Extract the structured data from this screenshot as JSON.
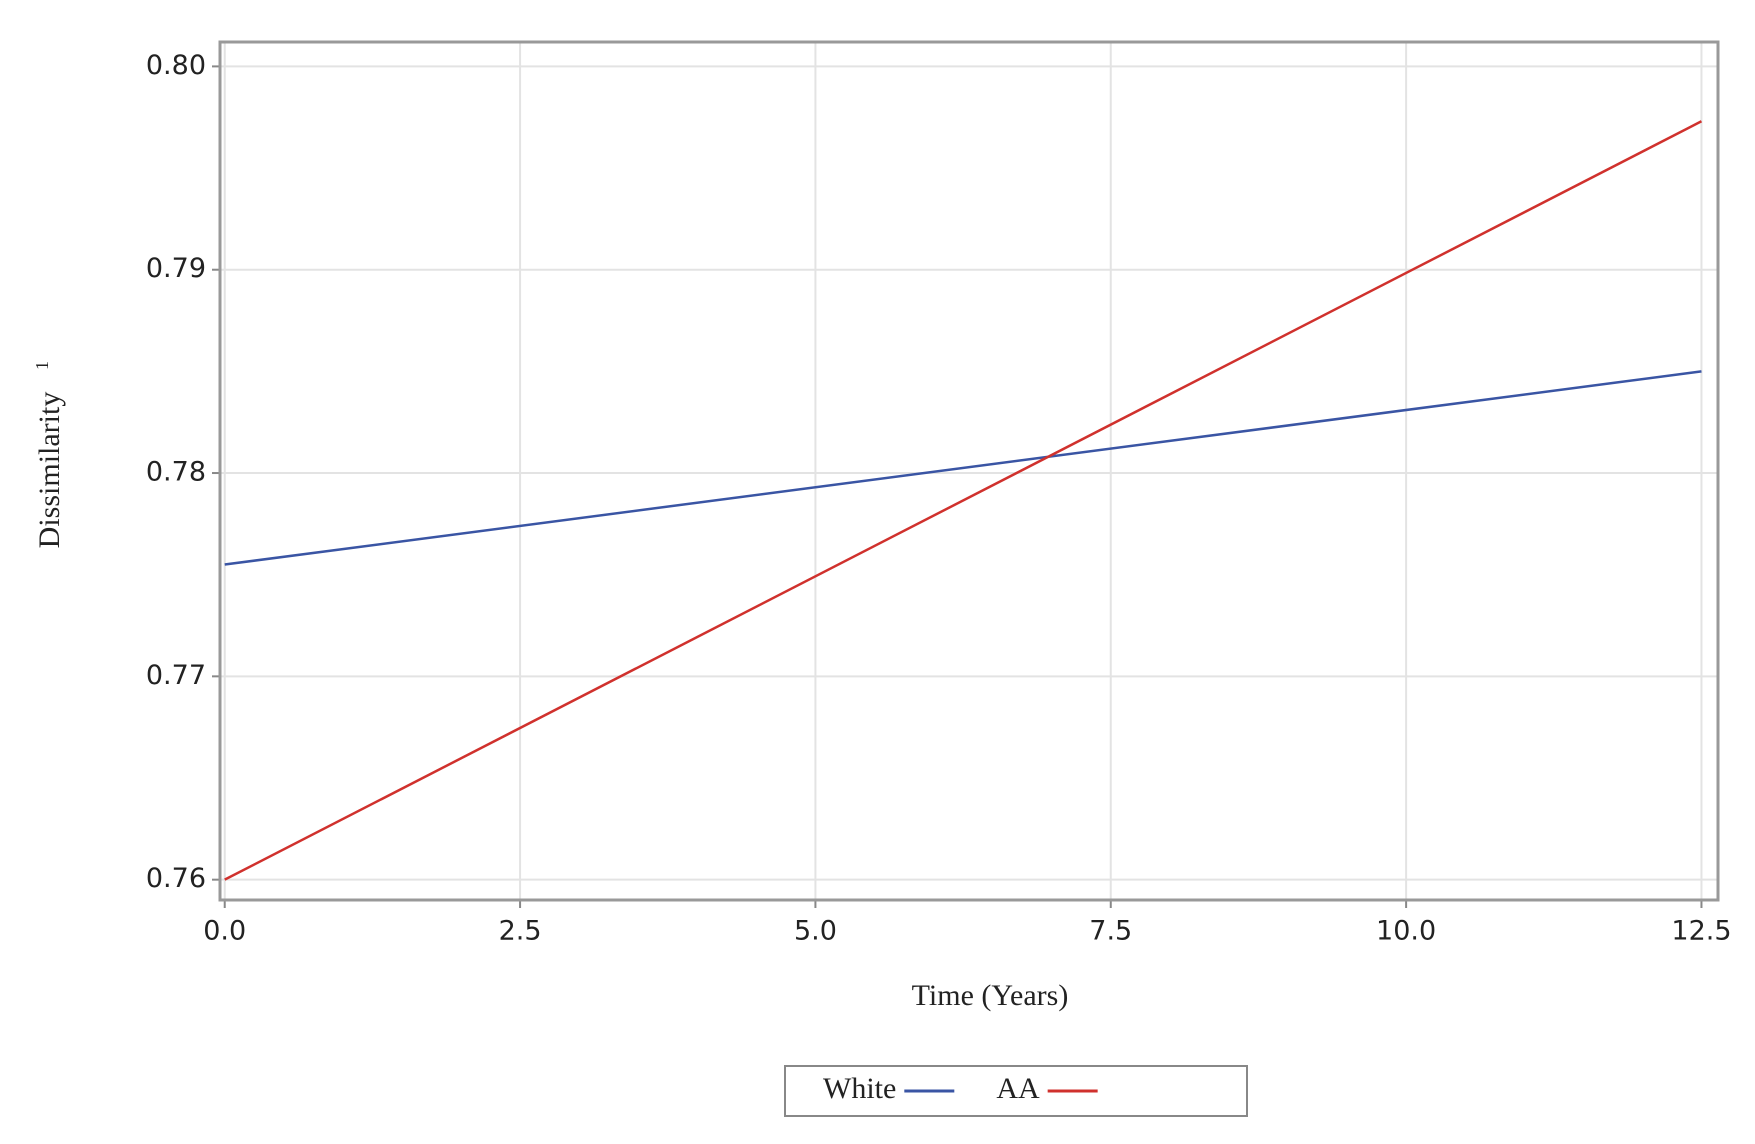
{
  "chart_data": {
    "type": "line",
    "x_label": "Time (Years)",
    "y_label": "Dissimilarity",
    "y_label_superscript": "1",
    "x": [
      0,
      12.5
    ],
    "series": [
      {
        "name": "White",
        "color": "#3a55a4",
        "values": [
          0.7755,
          0.785
        ]
      },
      {
        "name": "AA",
        "color": "#d0312d",
        "values": [
          0.76,
          0.7973
        ]
      }
    ],
    "xlim": [
      -0.04,
      12.64
    ],
    "ylim": [
      0.759,
      0.8012
    ],
    "xticks": [
      {
        "value": 0,
        "label": "0.0"
      },
      2.5,
      {
        "value": 5,
        "label": "5.0"
      },
      7.5,
      {
        "value": 10,
        "label": "10.0"
      },
      12.5
    ],
    "yticks": [
      0.76,
      0.77,
      0.78,
      0.79,
      {
        "value": 0.8,
        "label": "0.80"
      }
    ],
    "grid": true,
    "legend": "bottom"
  }
}
